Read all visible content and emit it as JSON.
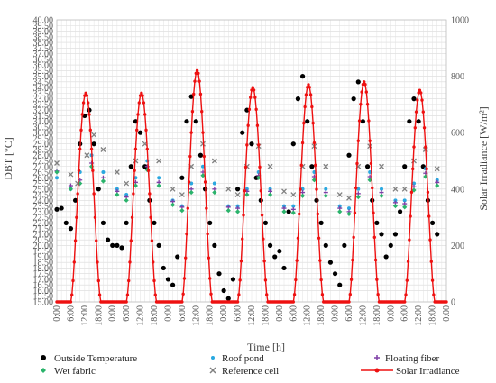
{
  "chart_data": {
    "type": "line",
    "xlabel": "Time [h]",
    "ylabel_left": "DBT [°C]",
    "ylabel_right": "Solar Irradiance [W/m²]",
    "ylim_left": [
      15,
      40
    ],
    "ylim_right": [
      0,
      1000
    ],
    "y_left_step": 0.5,
    "y_right_step": 200,
    "x_tick_step_hours": 6,
    "x_tick_labels": [
      "0:00",
      "6:00",
      "12:00",
      "18:00",
      "0:00",
      "6:00",
      "12:00",
      "18:00",
      "0:00",
      "6:00",
      "12:00",
      "18:00",
      "0:00",
      "6:00",
      "12:00",
      "18:00",
      "0:00",
      "6:00",
      "12:00",
      "18:00",
      "0:00",
      "6:00",
      "12:00",
      "18:00",
      "0:00",
      "6:00",
      "12:00",
      "18:00",
      "0:00"
    ],
    "grid": true,
    "legend_position": "bottom",
    "series": [
      {
        "name": "Outside Temperature",
        "axis": "left",
        "marker": "circle",
        "color": "#000000",
        "mode": "markers",
        "points": [
          [
            0,
            23.2
          ],
          [
            2,
            23.3
          ],
          [
            4,
            22
          ],
          [
            6,
            21.5
          ],
          [
            8,
            24
          ],
          [
            10,
            29
          ],
          [
            12,
            31.5
          ],
          [
            14,
            32
          ],
          [
            16,
            29
          ],
          [
            18,
            25
          ],
          [
            20,
            22
          ],
          [
            22,
            20.5
          ],
          [
            24,
            20
          ],
          [
            26,
            20
          ],
          [
            28,
            19.8
          ],
          [
            30,
            22
          ],
          [
            32,
            27
          ],
          [
            34,
            31
          ],
          [
            36,
            30
          ],
          [
            38,
            27
          ],
          [
            40,
            24
          ],
          [
            42,
            22
          ],
          [
            44,
            20
          ],
          [
            46,
            18
          ],
          [
            48,
            17
          ],
          [
            50,
            16.5
          ],
          [
            52,
            19
          ],
          [
            54,
            26
          ],
          [
            56,
            31
          ],
          [
            58,
            33.2
          ],
          [
            60,
            31
          ],
          [
            62,
            28
          ],
          [
            64,
            25
          ],
          [
            66,
            22
          ],
          [
            68,
            20
          ],
          [
            70,
            17.5
          ],
          [
            72,
            16
          ],
          [
            74,
            15.3
          ],
          [
            76,
            17
          ],
          [
            78,
            25
          ],
          [
            80,
            30
          ],
          [
            82,
            32
          ],
          [
            84,
            29
          ],
          [
            86,
            26
          ],
          [
            88,
            24
          ],
          [
            90,
            22
          ],
          [
            92,
            20
          ],
          [
            94,
            19
          ],
          [
            96,
            19.5
          ],
          [
            98,
            18
          ],
          [
            100,
            23
          ],
          [
            102,
            29
          ],
          [
            104,
            33
          ],
          [
            106,
            35
          ],
          [
            108,
            31
          ],
          [
            110,
            27
          ],
          [
            112,
            24
          ],
          [
            114,
            22
          ],
          [
            116,
            20
          ],
          [
            118,
            18.5
          ],
          [
            120,
            17.5
          ],
          [
            122,
            16.5
          ],
          [
            124,
            20
          ],
          [
            126,
            28
          ],
          [
            128,
            33
          ],
          [
            130,
            34.5
          ],
          [
            132,
            31
          ],
          [
            134,
            27
          ],
          [
            136,
            24
          ],
          [
            138,
            22
          ],
          [
            140,
            21
          ],
          [
            142,
            19
          ],
          [
            144,
            20
          ],
          [
            146,
            21
          ],
          [
            148,
            23
          ],
          [
            150,
            27
          ],
          [
            152,
            31
          ],
          [
            154,
            33
          ],
          [
            156,
            31
          ],
          [
            158,
            27
          ],
          [
            160,
            24
          ],
          [
            162,
            22
          ],
          [
            164,
            21
          ]
        ]
      },
      {
        "name": "Roof pond",
        "axis": "left",
        "marker": "dot",
        "color": "#29a8e0",
        "mode": "markers",
        "points": [
          [
            0,
            26
          ],
          [
            6,
            25
          ],
          [
            10,
            26.5
          ],
          [
            15,
            28
          ],
          [
            20,
            26.5
          ],
          [
            26,
            25
          ],
          [
            30,
            24.5
          ],
          [
            34,
            26
          ],
          [
            39,
            27.5
          ],
          [
            44,
            26
          ],
          [
            50,
            24
          ],
          [
            54,
            23.5
          ],
          [
            58,
            25.5
          ],
          [
            63,
            27
          ],
          [
            68,
            25.5
          ],
          [
            74,
            23.5
          ],
          [
            78,
            23.5
          ],
          [
            82,
            25
          ],
          [
            87,
            26.5
          ],
          [
            92,
            25
          ],
          [
            98,
            23.5
          ],
          [
            102,
            23.5
          ],
          [
            106,
            25
          ],
          [
            111,
            26.5
          ],
          [
            116,
            25
          ],
          [
            122,
            23.5
          ],
          [
            126,
            23.3
          ],
          [
            130,
            25
          ],
          [
            135,
            26.5
          ],
          [
            140,
            25
          ],
          [
            146,
            24
          ],
          [
            150,
            24
          ],
          [
            154,
            25.5
          ],
          [
            159,
            26.8
          ],
          [
            164,
            25.8
          ]
        ]
      },
      {
        "name": "Floating fiber",
        "axis": "left",
        "marker": "plus",
        "color": "#7e3fa6",
        "mode": "markers",
        "points": [
          [
            0,
            26.6
          ],
          [
            6,
            25.3
          ],
          [
            10,
            25.8
          ],
          [
            15,
            27.3
          ],
          [
            20,
            26
          ],
          [
            26,
            24.8
          ],
          [
            30,
            24.3
          ],
          [
            34,
            25.6
          ],
          [
            39,
            27
          ],
          [
            44,
            25.6
          ],
          [
            50,
            23.9
          ],
          [
            54,
            23.4
          ],
          [
            58,
            25
          ],
          [
            63,
            26.5
          ],
          [
            68,
            25
          ],
          [
            74,
            23.4
          ],
          [
            78,
            23.3
          ],
          [
            82,
            24.8
          ],
          [
            87,
            26.2
          ],
          [
            92,
            24.8
          ],
          [
            98,
            23.3
          ],
          [
            102,
            23.2
          ],
          [
            106,
            24.7
          ],
          [
            111,
            26.1
          ],
          [
            116,
            24.7
          ],
          [
            122,
            23.3
          ],
          [
            126,
            23
          ],
          [
            130,
            24.6
          ],
          [
            135,
            26.1
          ],
          [
            140,
            24.7
          ],
          [
            146,
            23.8
          ],
          [
            150,
            23.7
          ],
          [
            154,
            25.2
          ],
          [
            159,
            26.4
          ],
          [
            164,
            25.6
          ]
        ]
      },
      {
        "name": "Wet fabric",
        "axis": "left",
        "marker": "diamond",
        "color": "#2ab36b",
        "mode": "markers",
        "points": [
          [
            0,
            26.5
          ],
          [
            6,
            25
          ],
          [
            10,
            25.5
          ],
          [
            15,
            27
          ],
          [
            20,
            25.7
          ],
          [
            26,
            24.5
          ],
          [
            30,
            24
          ],
          [
            34,
            25.3
          ],
          [
            39,
            26.7
          ],
          [
            44,
            25.3
          ],
          [
            50,
            23.6
          ],
          [
            54,
            23.1
          ],
          [
            58,
            24.7
          ],
          [
            63,
            26.2
          ],
          [
            68,
            24.7
          ],
          [
            74,
            23.1
          ],
          [
            78,
            23
          ],
          [
            82,
            24.5
          ],
          [
            87,
            26
          ],
          [
            92,
            24.5
          ],
          [
            98,
            23
          ],
          [
            102,
            22.9
          ],
          [
            106,
            24.4
          ],
          [
            111,
            25.8
          ],
          [
            116,
            24.4
          ],
          [
            122,
            23
          ],
          [
            126,
            22.8
          ],
          [
            130,
            24.3
          ],
          [
            135,
            25.8
          ],
          [
            140,
            24.4
          ],
          [
            146,
            23.5
          ],
          [
            150,
            23.4
          ],
          [
            154,
            24.9
          ],
          [
            159,
            26.1
          ],
          [
            164,
            25.3
          ]
        ]
      },
      {
        "name": "Reference cell",
        "axis": "left",
        "marker": "cross",
        "color": "#808080",
        "mode": "markers",
        "points": [
          [
            0,
            27.3
          ],
          [
            6,
            26.3
          ],
          [
            9,
            25.5
          ],
          [
            13,
            28
          ],
          [
            16,
            29.8
          ],
          [
            20,
            28.5
          ],
          [
            26,
            26.5
          ],
          [
            30,
            25.5
          ],
          [
            34,
            27.5
          ],
          [
            38,
            29
          ],
          [
            44,
            27.5
          ],
          [
            50,
            25
          ],
          [
            54,
            24.5
          ],
          [
            58,
            27
          ],
          [
            63,
            29
          ],
          [
            68,
            27.5
          ],
          [
            74,
            25
          ],
          [
            78,
            24.5
          ],
          [
            82,
            27
          ],
          [
            87,
            28.8
          ],
          [
            92,
            27
          ],
          [
            98,
            24.8
          ],
          [
            102,
            24.5
          ],
          [
            106,
            27
          ],
          [
            111,
            28.8
          ],
          [
            116,
            27
          ],
          [
            122,
            24.5
          ],
          [
            126,
            24.2
          ],
          [
            130,
            27
          ],
          [
            135,
            28.8
          ],
          [
            140,
            27
          ],
          [
            146,
            25
          ],
          [
            150,
            25
          ],
          [
            154,
            27.5
          ],
          [
            159,
            28.5
          ],
          [
            164,
            26.8
          ]
        ]
      },
      {
        "name": "Solar Irradiance",
        "axis": "right",
        "marker": "dot",
        "color": "#ee1111",
        "mode": "lines+markers",
        "days": [
          {
            "start": 6,
            "peak": 12.5,
            "end": 19,
            "peak_value": 740
          },
          {
            "start": 30,
            "peak": 36.5,
            "end": 43,
            "peak_value": 740
          },
          {
            "start": 54,
            "peak": 60.5,
            "end": 67,
            "peak_value": 820
          },
          {
            "start": 78,
            "peak": 84.5,
            "end": 91,
            "peak_value": 760
          },
          {
            "start": 102,
            "peak": 108.5,
            "end": 115,
            "peak_value": 770
          },
          {
            "start": 126,
            "peak": 132.5,
            "end": 139,
            "peak_value": 780
          },
          {
            "start": 150,
            "peak": 156.5,
            "end": 163,
            "peak_value": 750
          }
        ]
      }
    ]
  },
  "legend": {
    "outside_temperature": "Outside Temperature",
    "roof_pond": "Roof pond",
    "floating_fiber": "Floating fiber",
    "wet_fabric": "Wet fabric",
    "reference_cell": "Reference cell",
    "solar_irradiance": "Solar Irradiance"
  }
}
